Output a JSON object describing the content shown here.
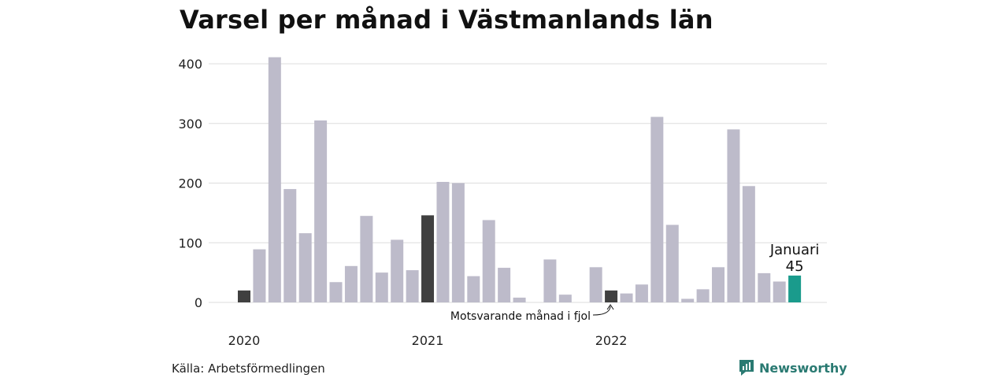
{
  "title": "Varsel per månad i Västmanlands län",
  "source": "Källa: Arbetsförmedlingen",
  "brand": "Newsworthy",
  "colors": {
    "bar": "#bdbbca",
    "comparison": "#404040",
    "highlight": "#1a9b8c",
    "grid": "#dddddd"
  },
  "chart_data": {
    "type": "bar",
    "title": "Varsel per månad i Västmanlands län",
    "xlabel": "",
    "ylabel": "",
    "ylim": [
      0,
      400
    ],
    "yticks": [
      0,
      100,
      200,
      300,
      400
    ],
    "grid": true,
    "year_labels": [
      {
        "label": "2020",
        "index": 0
      },
      {
        "label": "2021",
        "index": 12
      },
      {
        "label": "2022",
        "index": 24
      }
    ],
    "values": [
      20,
      89,
      411,
      190,
      116,
      305,
      34,
      61,
      145,
      50,
      105,
      54,
      146,
      202,
      200,
      44,
      138,
      58,
      8,
      0,
      72,
      13,
      0,
      59,
      20,
      15,
      30,
      311,
      130,
      6,
      22,
      59,
      290,
      195,
      49,
      35,
      45
    ],
    "comparison_indices": [
      0,
      12,
      24
    ],
    "highlight_index": 36,
    "highlight_label": "Januari",
    "highlight_value_label": "45",
    "annotation": "Motsvarande månad i fjol"
  }
}
